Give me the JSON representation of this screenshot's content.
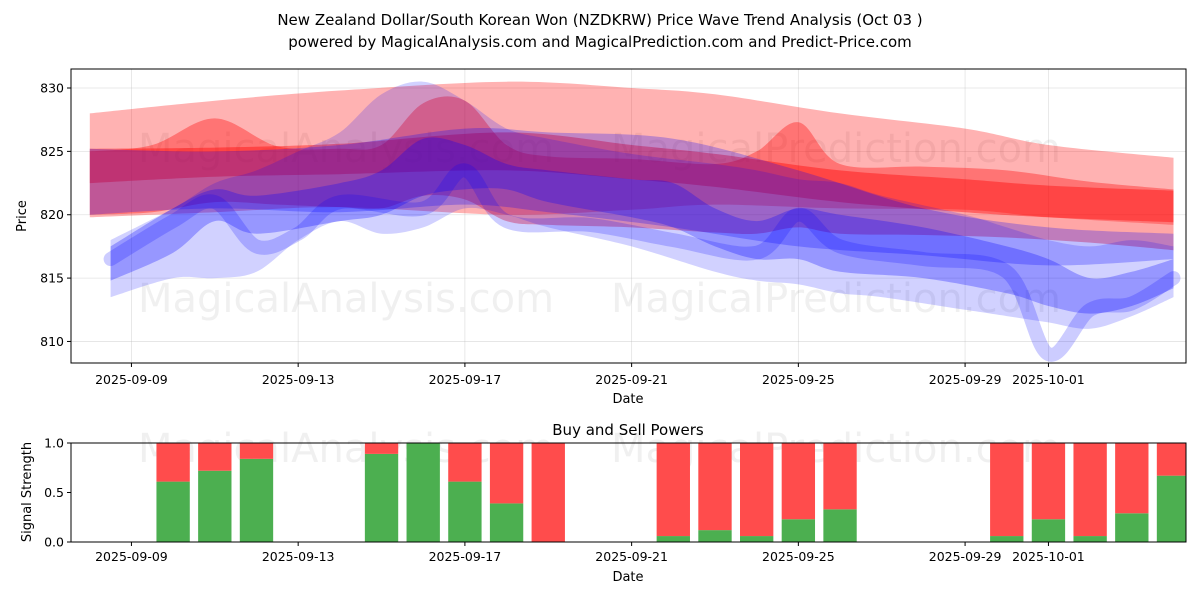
{
  "title_line1": "New Zealand Dollar/South Korean Won (NZDKRW) Price Wave Trend Analysis (Oct 03 )",
  "title_line2": "powered by MagicalAnalysis.com and MagicalPrediction.com and Predict-Price.com",
  "watermarks": [
    "MagicalAnalysis.com",
    "MagicalPrediction.com"
  ],
  "colors": {
    "red": "#ff0000",
    "blue": "#0000ff",
    "buy": "#4caf50",
    "sell": "#ff4c4c"
  },
  "chart_data": [
    {
      "type": "area",
      "title": "",
      "xlabel": "Date",
      "ylabel": "Price",
      "ylim": [
        808.3,
        831.5
      ],
      "yticks": [
        810,
        815,
        820,
        825,
        830
      ],
      "xlim": [
        7.55,
        34.3
      ],
      "xticks": [
        {
          "x": 9,
          "label": "2025-09-09"
        },
        {
          "x": 13,
          "label": "2025-09-13"
        },
        {
          "x": 17,
          "label": "2025-09-17"
        },
        {
          "x": 21,
          "label": "2025-09-21"
        },
        {
          "x": 25,
          "label": "2025-09-25"
        },
        {
          "x": 29,
          "label": "2025-09-29"
        },
        {
          "x": 31,
          "label": "2025-10-01"
        }
      ],
      "grid": true,
      "series": [
        {
          "name": "red-wide-band",
          "color": "red",
          "opacity": 0.3,
          "x": [
            8,
            11,
            14,
            18,
            21,
            23,
            26,
            29,
            31,
            34
          ],
          "upper": [
            828.0,
            829.0,
            829.8,
            830.5,
            830.0,
            829.5,
            828.0,
            826.8,
            825.5,
            824.5
          ],
          "lower": [
            819.8,
            820.2,
            820.6,
            820.0,
            820.4,
            820.8,
            820.5,
            820.4,
            819.8,
            819.2
          ]
        },
        {
          "name": "red-core-band",
          "color": "red",
          "opacity": 0.4,
          "x": [
            8,
            11,
            14,
            18,
            21,
            23,
            26,
            29,
            31,
            34
          ],
          "upper": [
            825.2,
            825.3,
            825.6,
            826.5,
            825.5,
            824.8,
            823.5,
            822.8,
            822.3,
            821.9
          ],
          "lower": [
            822.5,
            823.0,
            823.2,
            823.5,
            822.8,
            822.2,
            821.0,
            820.2,
            819.8,
            819.4
          ]
        },
        {
          "name": "red-wave-band",
          "color": "red",
          "opacity": 0.35,
          "x": [
            8,
            9.5,
            11,
            12.5,
            14,
            15,
            16,
            17,
            18,
            19,
            21,
            23,
            24,
            25,
            26,
            28,
            30,
            32,
            34
          ],
          "upper": [
            825.0,
            825.5,
            827.6,
            825.4,
            825.2,
            825.5,
            828.8,
            829.0,
            825.5,
            824.6,
            824.4,
            824.0,
            825.0,
            827.3,
            824.0,
            823.8,
            823.5,
            822.6,
            822.0
          ],
          "lower": [
            820.0,
            820.2,
            821.0,
            820.8,
            820.6,
            820.5,
            821.5,
            821.2,
            819.5,
            819.2,
            819.0,
            818.6,
            818.5,
            819.0,
            818.5,
            818.4,
            818.2,
            817.8,
            817.2
          ]
        },
        {
          "name": "purple-band",
          "color": "blue",
          "opacity": 0.25,
          "x": [
            8,
            11,
            14,
            17,
            19,
            22,
            25,
            28,
            31,
            34
          ],
          "upper": [
            825.2,
            825.0,
            825.5,
            826.8,
            826.5,
            826.0,
            823.5,
            820.5,
            819.0,
            818.5
          ],
          "lower": [
            820.0,
            820.5,
            820.2,
            820.8,
            820.2,
            819.0,
            817.5,
            816.8,
            816.0,
            816.5
          ]
        },
        {
          "name": "blue-wave-band",
          "color": "blue",
          "opacity": 0.18,
          "x": [
            8.5,
            10,
            11,
            12,
            13,
            14,
            15,
            16,
            17,
            18,
            19,
            21,
            23,
            24,
            25,
            26,
            27,
            29,
            30,
            31,
            32,
            33,
            34
          ],
          "upper": [
            818.0,
            820.5,
            822.5,
            823.5,
            825.0,
            826.5,
            829.5,
            830.5,
            829.0,
            826.8,
            826.0,
            824.8,
            824.0,
            823.5,
            822.8,
            822.5,
            821.5,
            820.0,
            819.0,
            818.0,
            817.5,
            818.0,
            817.5
          ],
          "lower": [
            813.5,
            815.0,
            815.0,
            815.5,
            818.0,
            819.5,
            818.5,
            819.0,
            820.5,
            820.0,
            819.0,
            817.5,
            815.5,
            814.8,
            814.5,
            813.8,
            813.5,
            812.5,
            812.0,
            811.5,
            811.0,
            812.0,
            813.5
          ]
        },
        {
          "name": "blue-core-band",
          "color": "blue",
          "opacity": 0.28,
          "x": [
            8.5,
            10,
            11,
            12,
            14,
            15,
            16,
            17,
            18,
            19,
            21,
            22,
            23,
            24,
            25,
            26,
            28,
            30,
            31,
            32,
            33,
            34
          ],
          "upper": [
            817.5,
            820.5,
            822.0,
            821.5,
            822.5,
            823.5,
            826.0,
            825.5,
            824.0,
            823.5,
            822.8,
            822.5,
            820.5,
            819.5,
            820.5,
            820.0,
            819.0,
            817.5,
            816.5,
            815.0,
            815.5,
            816.5
          ],
          "lower": [
            814.8,
            817.0,
            819.5,
            818.5,
            819.5,
            820.0,
            821.5,
            822.0,
            822.0,
            821.0,
            819.8,
            819.0,
            817.5,
            816.5,
            816.5,
            815.5,
            815.0,
            813.8,
            812.8,
            812.2,
            812.8,
            814.2
          ]
        }
      ],
      "lines": [
        {
          "name": "blue-spike-line",
          "color": "blue",
          "opacity": 0.2,
          "width": 14,
          "x": [
            8.5,
            10,
            11,
            12,
            13,
            14,
            16,
            17,
            18,
            20,
            22,
            24,
            25,
            26,
            28,
            30,
            31,
            32,
            33,
            34
          ],
          "y": [
            816.5,
            819.5,
            821.0,
            817.5,
            818.5,
            821.0,
            820.5,
            823.5,
            819.5,
            819.2,
            818.0,
            817.0,
            820.0,
            817.5,
            816.5,
            815.5,
            809.0,
            812.5,
            813.0,
            815.0
          ]
        }
      ]
    },
    {
      "type": "bar",
      "title": "Buy and Sell Powers",
      "xlabel": "Date",
      "ylabel": "Signal Strength",
      "ylim": [
        0,
        1
      ],
      "yticks": [
        {
          "v": 0.0,
          "label": "0.0"
        },
        {
          "v": 0.5,
          "label": "0.5"
        },
        {
          "v": 1.0,
          "label": "1.0"
        }
      ],
      "xlim": [
        7.55,
        34.3
      ],
      "xticks": [
        {
          "x": 9,
          "label": "2025-09-09"
        },
        {
          "x": 13,
          "label": "2025-09-13"
        },
        {
          "x": 17,
          "label": "2025-09-17"
        },
        {
          "x": 21,
          "label": "2025-09-21"
        },
        {
          "x": 25,
          "label": "2025-09-25"
        },
        {
          "x": 29,
          "label": "2025-09-29"
        },
        {
          "x": 31,
          "label": "2025-10-01"
        }
      ],
      "grid": false,
      "bar_width": 0.8,
      "categories": [
        10,
        11,
        12,
        15,
        16,
        17,
        18,
        19,
        22,
        23,
        24,
        25,
        26,
        30,
        31,
        32,
        33,
        34
      ],
      "series": [
        {
          "name": "Buy power",
          "color": "buy",
          "values": [
            0.61,
            0.72,
            0.84,
            0.89,
            1.0,
            0.61,
            0.39,
            0.0,
            0.06,
            0.12,
            0.06,
            0.23,
            0.33,
            0.06,
            0.23,
            0.06,
            0.29,
            0.67
          ]
        },
        {
          "name": "Sell power",
          "color": "sell",
          "values": [
            0.39,
            0.28,
            0.16,
            0.11,
            0.0,
            0.39,
            0.61,
            1.0,
            0.94,
            0.88,
            0.94,
            0.77,
            0.67,
            0.94,
            0.77,
            0.94,
            0.71,
            0.33
          ]
        }
      ]
    }
  ]
}
